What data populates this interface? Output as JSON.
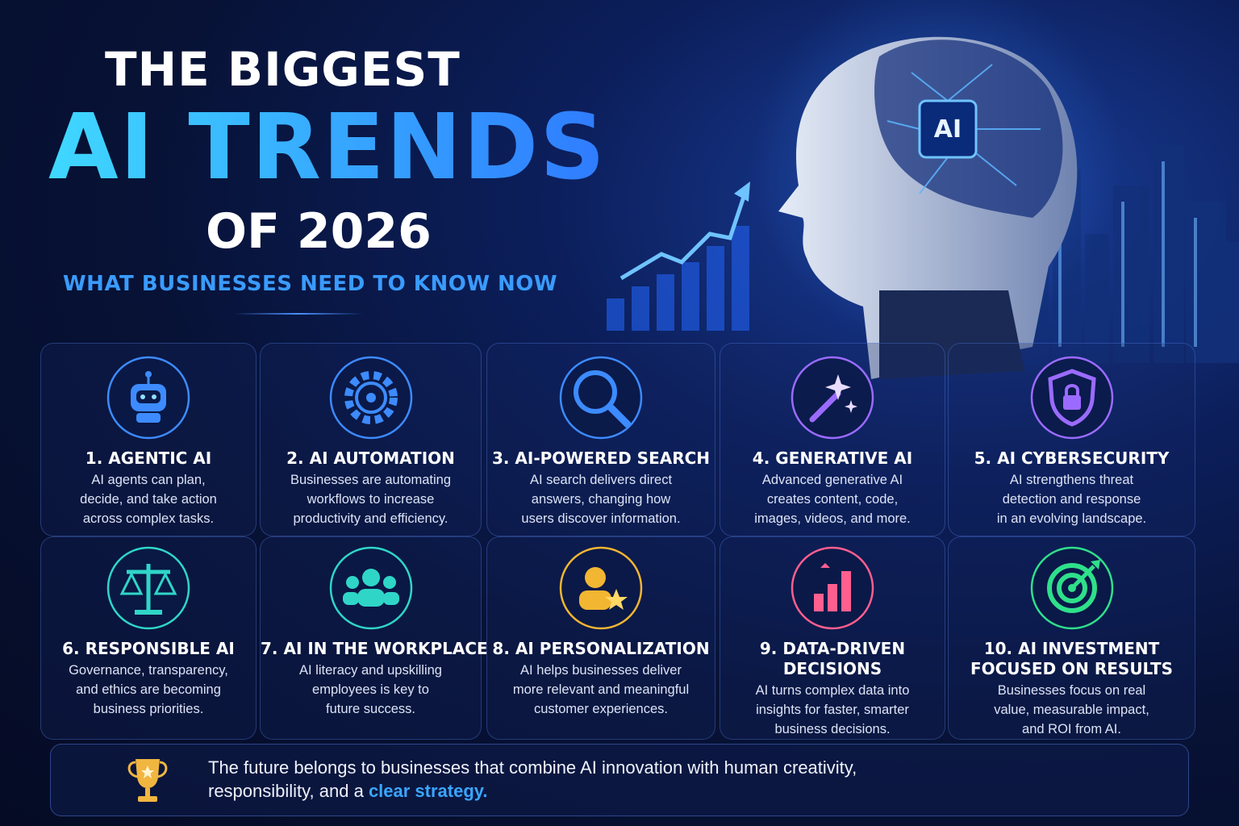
{
  "header": {
    "title_line1": "THE BIGGEST",
    "title_line2": "AI TRENDS",
    "title_line3": "OF 2026",
    "subtitle": "WHAT BUSINESSES NEED TO KNOW NOW"
  },
  "hero": {
    "chip_label": "AI"
  },
  "cards": [
    {
      "title": [
        "1. AGENTIC AI"
      ],
      "description": [
        "AI agents can plan,",
        "decide, and take action",
        "across complex tasks."
      ]
    },
    {
      "title": [
        "2. AI AUTOMATION"
      ],
      "description": [
        "Businesses are automating",
        "workflows to increase",
        "productivity and efficiency."
      ]
    },
    {
      "title": [
        "3. AI-POWERED SEARCH"
      ],
      "description": [
        "AI search delivers direct",
        "answers, changing how",
        "users discover information."
      ]
    },
    {
      "title": [
        "4. GENERATIVE AI"
      ],
      "description": [
        "Advanced generative AI",
        "creates content, code,",
        "images, videos, and more."
      ]
    },
    {
      "title": [
        "5. AI CYBERSECURITY"
      ],
      "description": [
        "AI strengthens threat",
        "detection and response",
        "in an evolving landscape."
      ]
    },
    {
      "title": [
        "6. RESPONSIBLE AI"
      ],
      "description": [
        "Governance, transparency,",
        "and ethics are becoming",
        "business priorities."
      ]
    },
    {
      "title": [
        "7. AI IN THE WORKPLACE"
      ],
      "description": [
        "AI literacy and upskilling",
        "employees is key to",
        "future success."
      ]
    },
    {
      "title": [
        "8. AI PERSONALIZATION"
      ],
      "description": [
        "AI helps businesses deliver",
        "more relevant and meaningful",
        "customer experiences."
      ]
    },
    {
      "title": [
        "9. DATA-DRIVEN",
        "DECISIONS"
      ],
      "description": [
        "AI turns complex data into",
        "insights for faster, smarter",
        "business decisions."
      ]
    },
    {
      "title": [
        "10. AI INVESTMENT",
        "FOCUSED ON RESULTS"
      ],
      "description": [
        "Businesses focus on real",
        "value, measurable impact,",
        "and ROI from AI."
      ]
    }
  ],
  "footer": {
    "text_line1": "The future belongs to businesses that combine AI innovation with human creativity,",
    "text_line2": "responsibility, and a ",
    "highlight": "clear strategy."
  }
}
